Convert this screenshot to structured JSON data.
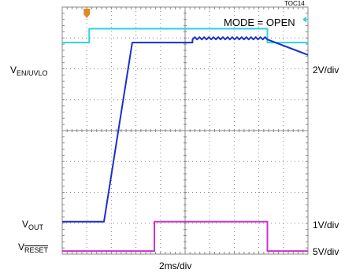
{
  "figure_id": "TOC14",
  "mode_text": "MODE = OPEN",
  "channel_labels": {
    "en_uvlo": {
      "main": "V",
      "sub": "EN/UVLO"
    },
    "out": {
      "main": "V",
      "sub": "OUT"
    },
    "reset": {
      "main": "V",
      "sub": "RESET"
    }
  },
  "scale_labels": {
    "en_uvlo": "2V/div",
    "out": "1V/div",
    "reset": "5V/div"
  },
  "time_scale": "2ms/div",
  "colors": {
    "en_uvlo": "#2fd1e0",
    "out": "#1a2fcc",
    "reset": "#d030d0",
    "trigger": "#e08a20",
    "grid": "#888888"
  },
  "chart_data": {
    "type": "line",
    "title": "",
    "xlabel": "2ms/div",
    "x_divisions": 10,
    "y_divisions": 8,
    "x_unit": "div",
    "y_unit": "div",
    "grid": true,
    "series": [
      {
        "name": "V_EN/UVLO",
        "x": [
          0,
          1.1,
          1.1,
          8.35,
          8.35,
          10
        ],
        "y": [
          6.85,
          6.85,
          7.3,
          7.3,
          6.85,
          6.85
        ]
      },
      {
        "name": "V_OUT",
        "x": [
          0,
          1.7,
          2.85,
          5.3,
          5.3,
          8.35,
          10
        ],
        "y": [
          1.05,
          1.05,
          6.85,
          6.85,
          6.95,
          6.95,
          6.45
        ]
      },
      {
        "name": "V_RESET",
        "x": [
          0,
          3.75,
          3.75,
          8.35,
          8.35,
          10
        ],
        "y": [
          0.1,
          0.1,
          1.05,
          1.05,
          0.1,
          0.1
        ]
      }
    ]
  }
}
